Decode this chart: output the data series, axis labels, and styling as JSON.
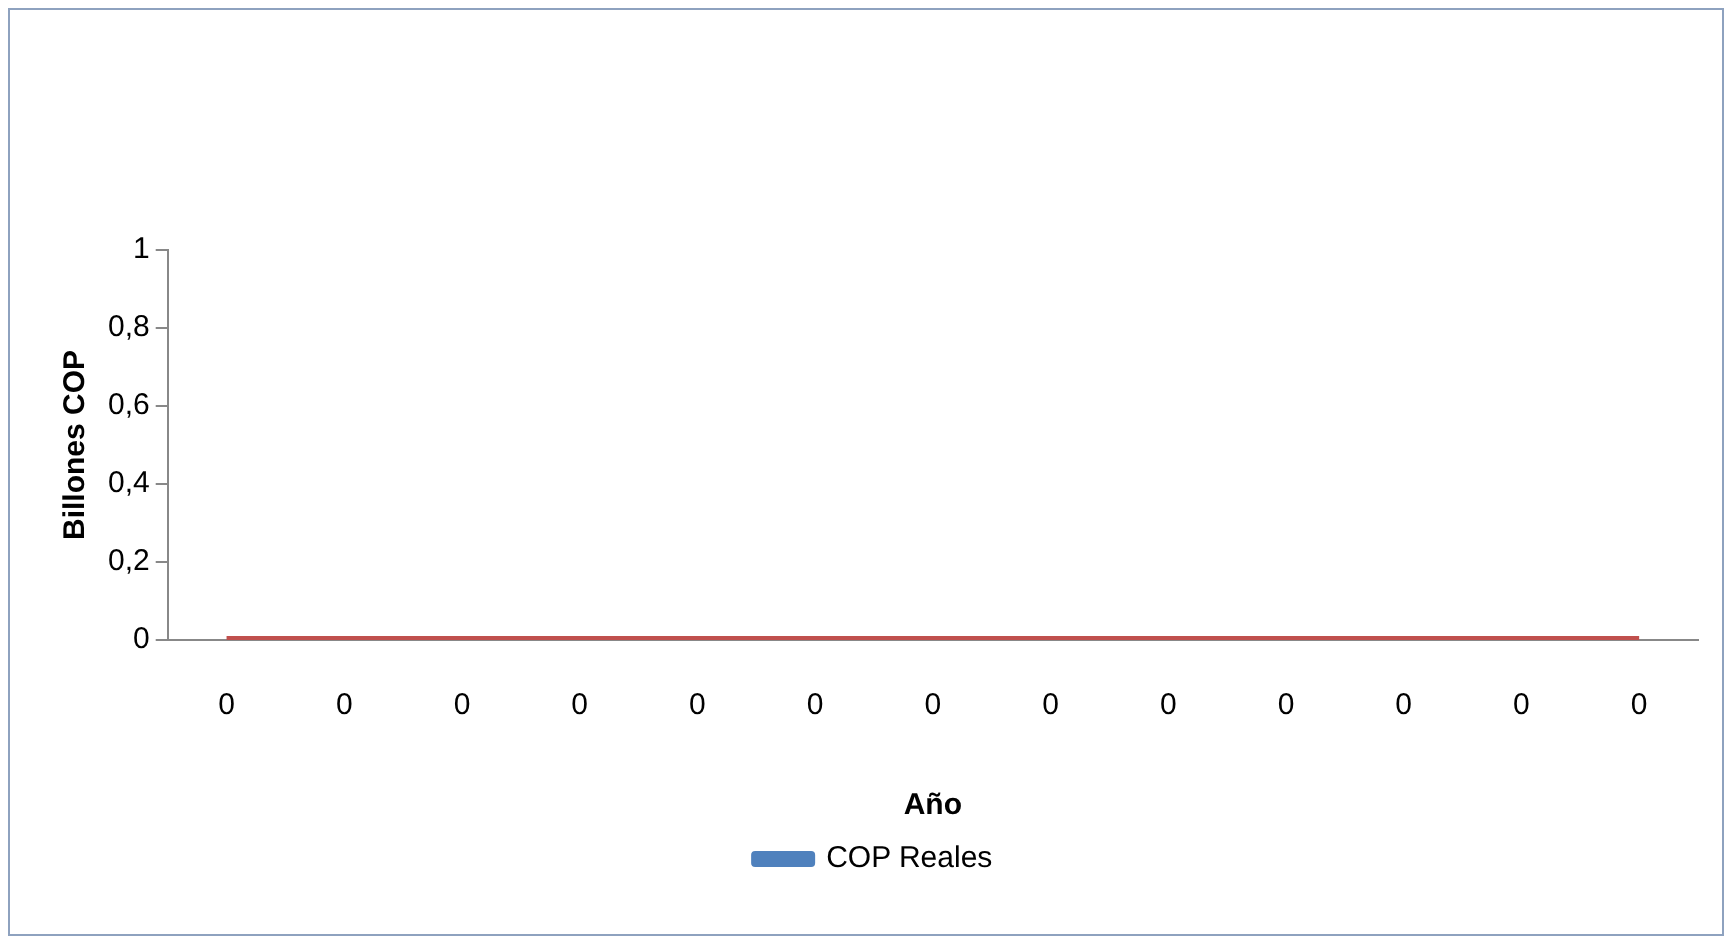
{
  "chart_data": {
    "type": "line",
    "xlabel": "Año",
    "ylabel": "Billones COP",
    "categories": [
      "0",
      "0",
      "0",
      "0",
      "0",
      "0",
      "0",
      "0",
      "0",
      "0",
      "0",
      "0",
      "0"
    ],
    "series": [
      {
        "name": "COP Reales",
        "color": "#4f81bd",
        "values": [
          null,
          null,
          null,
          null,
          null,
          null,
          null,
          null,
          null,
          null,
          null,
          null,
          null
        ]
      },
      {
        "color": "#c0504d",
        "values": [
          0,
          0,
          0,
          0,
          0,
          0,
          0,
          0,
          0,
          0,
          0,
          0,
          0
        ]
      }
    ],
    "ylim": [
      0,
      1
    ],
    "yticks": [
      0,
      {
        "value": 0.2,
        "label": "0,2"
      },
      {
        "value": 0.4,
        "label": "0,4"
      },
      {
        "value": 0.6,
        "label": "0,6"
      },
      {
        "value": 0.8,
        "label": "0,8"
      },
      1
    ],
    "grid": false,
    "legend": "bottom",
    "marker": "none",
    "line_style": "solid"
  }
}
